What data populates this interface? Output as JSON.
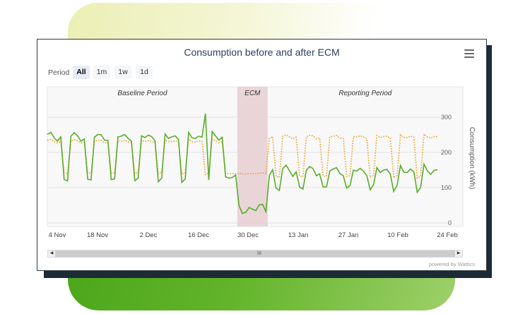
{
  "chart_data": {
    "type": "line",
    "title": "Consumption before and after ECM",
    "ylabel": "Consumption (kWh)",
    "ylim": [
      0,
      300
    ],
    "yticks": [
      "0",
      "100",
      "200",
      "300"
    ],
    "xticks": [
      "4 Nov",
      "18 Nov",
      "2 Dec",
      "16 Dec",
      "30 Dec",
      "13 Jan",
      "27 Jan",
      "10 Feb",
      "24 Feb"
    ],
    "bands": [
      {
        "label": "Baseline Period"
      },
      {
        "label": "ECM"
      },
      {
        "label": "Reporting Period"
      }
    ],
    "series": [
      {
        "type": "line",
        "color": "#5aac2a",
        "dash": "solid",
        "values": []
      },
      {
        "type": "line",
        "color": "#f29b22",
        "dash": "dotted",
        "values": []
      }
    ]
  },
  "range_selector": {
    "label": "Period",
    "buttons": [
      "All",
      "1m",
      "1w",
      "1d"
    ],
    "selected": "All"
  },
  "navigator": {
    "grip": "III"
  },
  "credits": "powered by Wattics",
  "icons": {
    "menu": "hamburger-menu-icon"
  },
  "colors": {
    "ecm_band": "#e8d2d6",
    "actual": "#5aac2a",
    "baseline": "#f29b22"
  }
}
